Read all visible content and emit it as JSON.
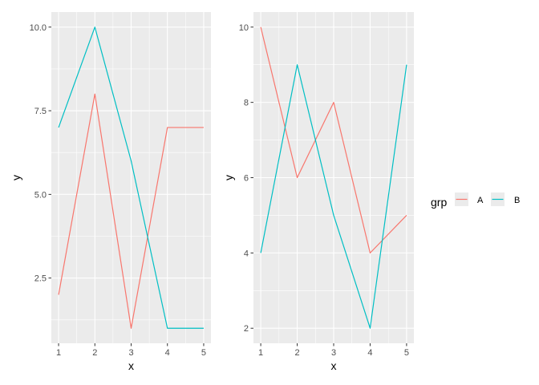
{
  "chart_data": [
    {
      "type": "line",
      "x": [
        1,
        2,
        3,
        4,
        5
      ],
      "series": [
        {
          "name": "A",
          "values": [
            2,
            8,
            1,
            7,
            7
          ]
        },
        {
          "name": "B",
          "values": [
            7,
            10,
            6,
            1,
            1
          ]
        }
      ],
      "xlabel": "x",
      "ylabel": "y",
      "xlim": [
        1,
        5
      ],
      "ylim": [
        1,
        10
      ],
      "xticks": [
        1,
        2,
        3,
        4,
        5
      ],
      "yticks": [
        2.5,
        5.0,
        7.5,
        10.0
      ],
      "ytick_labels": [
        "2.5",
        "5.0",
        "7.5",
        "10.0"
      ],
      "grid": true
    },
    {
      "type": "line",
      "x": [
        1,
        2,
        3,
        4,
        5
      ],
      "series": [
        {
          "name": "A",
          "values": [
            10,
            6,
            8,
            4,
            5
          ]
        },
        {
          "name": "B",
          "values": [
            4,
            9,
            5,
            2,
            9
          ]
        }
      ],
      "xlabel": "x",
      "ylabel": "y",
      "xlim": [
        1,
        5
      ],
      "ylim": [
        2,
        10
      ],
      "xticks": [
        1,
        2,
        3,
        4,
        5
      ],
      "yticks": [
        2,
        4,
        6,
        8,
        10
      ],
      "ytick_labels": [
        "2",
        "4",
        "6",
        "8",
        "10"
      ],
      "grid": true
    }
  ],
  "legend": {
    "title": "grp",
    "placement": "right",
    "entries": [
      {
        "label": "A",
        "color": "#F8766D"
      },
      {
        "label": "B",
        "color": "#00BFC4"
      }
    ]
  },
  "colors": {
    "panel_bg": "#EBEBEB",
    "grid_major": "#FFFFFF",
    "series_A": "#F8766D",
    "series_B": "#00BFC4"
  }
}
